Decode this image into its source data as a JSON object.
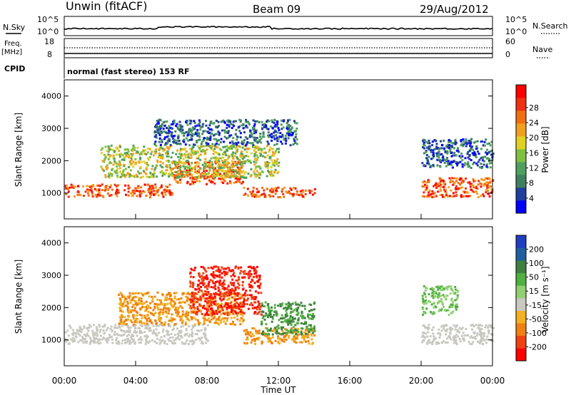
{
  "header": {
    "station": "Unwin (fitACF)",
    "beam": "Beam 09",
    "date": "29/Aug/2012"
  },
  "status_panels": {
    "nsky_label": "N.Sky",
    "nsky_ticks": [
      "10^5",
      "10^0"
    ],
    "nsearch_label": "N.Search",
    "nsearch_ticks": [
      "10^5",
      "10^0"
    ],
    "freq_label": "Freq.",
    "freq_unit": "[MHz]",
    "freq_ticks": [
      "18",
      "8"
    ],
    "nave_label": "Nave",
    "nave_ticks": [
      "60",
      "0"
    ],
    "cpid_label": "CPID",
    "cpid_text": "normal (fast stereo) 153 RF"
  },
  "chart_data": [
    {
      "type": "heatmap",
      "name": "power",
      "ylabel": "Slant Range [km]",
      "xlabel": "",
      "ylim": [
        200,
        4500
      ],
      "xlim": [
        0,
        24
      ],
      "yticks": [
        "1000",
        "2000",
        "3000",
        "4000"
      ],
      "colorbar": {
        "label": "Power [dB]",
        "ticks": [
          "4",
          "8",
          "12",
          "16",
          "20",
          "24",
          "28"
        ],
        "colors": [
          "#0000ff",
          "#1f3f9f",
          "#3f7f5f",
          "#4fa05f",
          "#7fc040",
          "#e0d020",
          "#f0a020",
          "#f07010",
          "#f03010",
          "#ff0000"
        ]
      },
      "features": [
        {
          "x_range": [
            0,
            6
          ],
          "range_km": [
            900,
            1300
          ],
          "level": "high"
        },
        {
          "x_range": [
            6,
            10
          ],
          "range_km": [
            1300,
            2000
          ],
          "level": "high"
        },
        {
          "x_range": [
            10,
            14
          ],
          "range_km": [
            900,
            1200
          ],
          "level": "high"
        },
        {
          "x_range": [
            2,
            12
          ],
          "range_km": [
            1500,
            2500
          ],
          "level": "medium"
        },
        {
          "x_range": [
            5,
            13
          ],
          "range_km": [
            2500,
            3300
          ],
          "level": "low"
        },
        {
          "x_range": [
            20,
            24
          ],
          "range_km": [
            900,
            1500
          ],
          "level": "high"
        },
        {
          "x_range": [
            20,
            24
          ],
          "range_km": [
            1800,
            2700
          ],
          "level": "low"
        }
      ]
    },
    {
      "type": "heatmap",
      "name": "velocity",
      "ylabel": "Slant Range [km]",
      "xlabel": "Time UT",
      "ylim": [
        200,
        4500
      ],
      "xlim": [
        0,
        24
      ],
      "yticks": [
        "1000",
        "2000",
        "3000",
        "4000"
      ],
      "xticks": [
        "00:00",
        "04:00",
        "08:00",
        "12:00",
        "16:00",
        "20:00",
        "00:00"
      ],
      "colorbar": {
        "label": "Velocity [m s⁻¹]",
        "ticks": [
          "200",
          "100",
          "50",
          "15",
          "-15",
          "-50",
          "-100",
          "-200"
        ],
        "colors": [
          "#1f3fbf",
          "#1f5f9f",
          "#3f7f3f",
          "#50b040",
          "#90d070",
          "#c8c8c0",
          "#f0b020",
          "#f08010",
          "#f04010",
          "#ff0000"
        ]
      },
      "features": [
        {
          "x_range": [
            0,
            8
          ],
          "range_km": [
            900,
            1500
          ],
          "velocity": "~0"
        },
        {
          "x_range": [
            3,
            10
          ],
          "range_km": [
            1500,
            2500
          ],
          "velocity": "-50"
        },
        {
          "x_range": [
            7,
            11
          ],
          "range_km": [
            1800,
            3300
          ],
          "velocity": "-200"
        },
        {
          "x_range": [
            10,
            14
          ],
          "range_km": [
            900,
            1400
          ],
          "velocity": "-50"
        },
        {
          "x_range": [
            11,
            14
          ],
          "range_km": [
            1200,
            2200
          ],
          "velocity": "50"
        },
        {
          "x_range": [
            20,
            24
          ],
          "range_km": [
            900,
            1500
          ],
          "velocity": "~0"
        },
        {
          "x_range": [
            20,
            22
          ],
          "range_km": [
            1800,
            2700
          ],
          "velocity": "15"
        }
      ]
    }
  ]
}
